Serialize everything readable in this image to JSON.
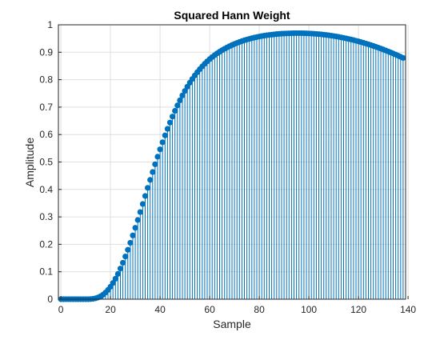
{
  "chart_data": {
    "type": "stem",
    "title": "Squared Hann Weight",
    "xlabel": "Sample",
    "ylabel": "Amplitude",
    "xlim": [
      -1,
      139
    ],
    "ylim": [
      0,
      1
    ],
    "xticks": [
      0,
      20,
      40,
      60,
      80,
      100,
      120,
      140
    ],
    "yticks": [
      0,
      0.1,
      0.2,
      0.3,
      0.4,
      0.5,
      0.6,
      0.7,
      0.8,
      0.9,
      1
    ],
    "xtick_labels": [
      "0",
      "20",
      "40",
      "60",
      "80",
      "100",
      "120",
      "140"
    ],
    "ytick_labels": [
      "0",
      "0.1",
      "0.2",
      "0.3",
      "0.4",
      "0.5",
      "0.6",
      "0.7",
      "0.8",
      "0.9",
      "1"
    ],
    "grid": true,
    "series": [
      {
        "color": "#0072BD",
        "x": [
          0,
          1,
          2,
          3,
          4,
          5,
          6,
          7,
          8,
          9,
          10,
          11,
          12,
          13,
          14,
          15,
          16,
          17,
          18,
          19,
          20,
          21,
          22,
          23,
          24,
          25,
          26,
          27,
          28,
          29,
          30,
          31,
          32,
          33,
          34,
          35,
          36,
          37,
          38,
          39,
          40,
          41,
          42,
          43,
          44,
          45,
          46,
          47,
          48,
          49,
          50,
          51,
          52,
          53,
          54,
          55,
          56,
          57,
          58,
          59,
          60,
          61,
          62,
          63,
          64,
          65,
          66,
          67,
          68,
          69,
          70,
          71,
          72,
          73,
          74,
          75,
          76,
          77,
          78,
          79,
          80,
          81,
          82,
          83,
          84,
          85,
          86,
          87,
          88,
          89,
          90,
          91,
          92,
          93,
          94,
          95,
          96,
          97,
          98,
          99,
          100,
          101,
          102,
          103,
          104,
          105,
          106,
          107,
          108,
          109,
          110,
          111,
          112,
          113,
          114,
          115,
          116,
          117,
          118,
          119,
          120,
          121,
          122,
          123,
          124,
          125,
          126,
          127,
          128,
          129,
          130,
          131,
          132,
          133,
          134,
          135,
          136,
          137,
          138
        ],
        "values": [
          0,
          0,
          0,
          0,
          0,
          0,
          0,
          0,
          0,
          0,
          0,
          0.0001,
          0.0005,
          0.0015,
          0.0033,
          0.0063,
          0.0106,
          0.0165,
          0.0242,
          0.0338,
          0.0454,
          0.059,
          0.0746,
          0.0922,
          0.1116,
          0.1328,
          0.1557,
          0.18,
          0.2056,
          0.2324,
          0.2601,
          0.2886,
          0.3176,
          0.3469,
          0.3763,
          0.4057,
          0.4348,
          0.4635,
          0.4917,
          0.5193,
          0.546,
          0.5719,
          0.5969,
          0.6209,
          0.6438,
          0.6657,
          0.6865,
          0.7062,
          0.7248,
          0.7424,
          0.7589,
          0.7745,
          0.789,
          0.8026,
          0.8153,
          0.8272,
          0.8382,
          0.8484,
          0.8579,
          0.8667,
          0.8749,
          0.8824,
          0.8894,
          0.8959,
          0.9019,
          0.9075,
          0.9127,
          0.9175,
          0.9221,
          0.9263,
          0.9302,
          0.9339,
          0.9373,
          0.9405,
          0.9435,
          0.9462,
          0.9488,
          0.9511,
          0.9533,
          0.9553,
          0.9571,
          0.9588,
          0.9603,
          0.9617,
          0.963,
          0.9641,
          0.9651,
          0.966,
          0.9668,
          0.9675,
          0.968,
          0.9685,
          0.9689,
          0.9692,
          0.9694,
          0.9695,
          0.9695,
          0.9694,
          0.9692,
          0.9689,
          0.9685,
          0.968,
          0.9674,
          0.9667,
          0.9659,
          0.965,
          0.964,
          0.9629,
          0.9617,
          0.9604,
          0.959,
          0.9575,
          0.9559,
          0.9542,
          0.9524,
          0.9505,
          0.9485,
          0.9464,
          0.9442,
          0.9419,
          0.9395,
          0.937,
          0.9344,
          0.9317,
          0.9289,
          0.926,
          0.923,
          0.9199,
          0.9167,
          0.9134,
          0.91,
          0.9065,
          0.9029,
          0.8992,
          0.8954,
          0.8915,
          0.8875,
          0.8834,
          0.8792
        ]
      }
    ]
  }
}
